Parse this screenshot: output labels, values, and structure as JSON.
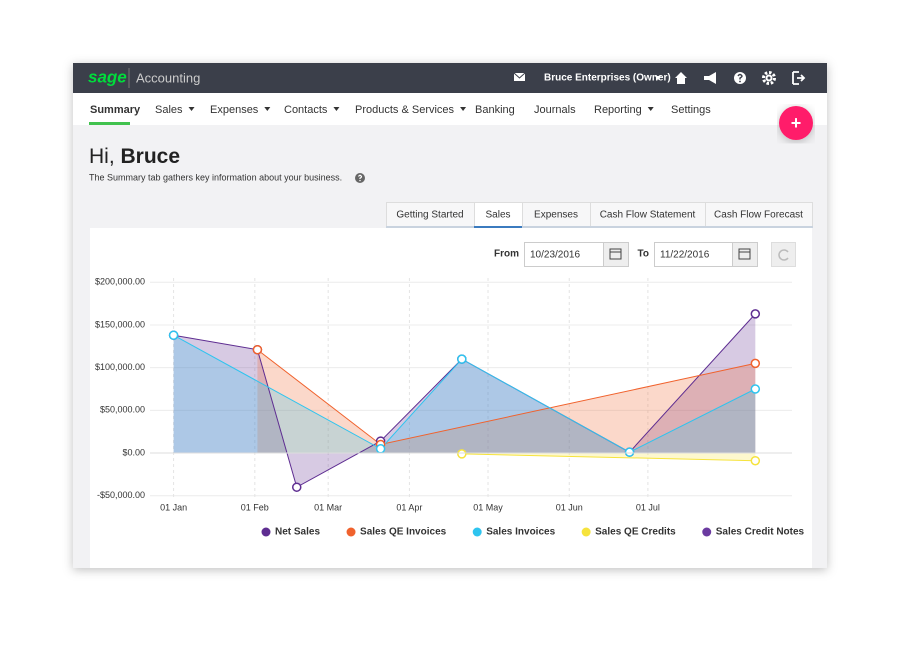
{
  "header": {
    "logo": "sage",
    "product": "Accounting",
    "company": "Bruce Enterprises (Owner)"
  },
  "nav": [
    "Summary",
    "Sales",
    "Expenses",
    "Contacts",
    "Products & Services",
    "Banking",
    "Journals",
    "Reporting",
    "Settings"
  ],
  "add_button": "+",
  "greeting": {
    "hi": "Hi,",
    "name": "Bruce",
    "subtitle": "The Summary tab gathers key information about your business."
  },
  "tabs": [
    "Getting Started",
    "Sales",
    "Expenses",
    "Cash Flow Statement",
    "Cash Flow Forecast"
  ],
  "date_filter": {
    "from_label": "From",
    "from": "10/23/2016",
    "to_label": "To",
    "to": "11/22/2016"
  },
  "chart_data": {
    "type": "area",
    "xlim": [
      -9,
      236
    ],
    "xticks": [
      {
        "value": 0,
        "label": "01 Jan"
      },
      {
        "value": 31,
        "label": "01 Feb"
      },
      {
        "value": 59,
        "label": "01 Mar"
      },
      {
        "value": 90,
        "label": "01 Apr"
      },
      {
        "value": 120,
        "label": "01 May"
      },
      {
        "value": 151,
        "label": "01 Jun"
      },
      {
        "value": 181,
        "label": "01 Jul"
      }
    ],
    "ylim": [
      -55000,
      205000
    ],
    "yticks": [
      {
        "value": -50000,
        "label": "-$50,000.00"
      },
      {
        "value": 0,
        "label": "$0.00"
      },
      {
        "value": 50000,
        "label": "$50,000.00"
      },
      {
        "value": 100000,
        "label": "$100,000.00"
      },
      {
        "value": 150000,
        "label": "$150,000.00"
      },
      {
        "value": 200000,
        "label": "$200,000.00"
      }
    ],
    "grid": true,
    "legend": "bottom",
    "series": [
      {
        "name": "Net Sales",
        "color": "#5e2d91",
        "x": [
          0,
          32,
          47,
          79,
          110,
          174,
          222
        ],
        "values": [
          138000,
          121000,
          -40000,
          14000,
          110000,
          1000,
          163000
        ]
      },
      {
        "name": "Sales QE Invoices",
        "color": "#f0622d",
        "x": [
          32,
          79,
          222
        ],
        "values": [
          121000,
          10000,
          105000
        ]
      },
      {
        "name": "Sales Invoices",
        "color": "#2ec4ef",
        "x": [
          0,
          79,
          110,
          174,
          222
        ],
        "values": [
          138000,
          5000,
          110000,
          1000,
          75000
        ]
      },
      {
        "name": "Sales QE Credits",
        "color": "#f6e33c",
        "x": [
          110,
          222
        ],
        "values": [
          -1000,
          -9000
        ]
      },
      {
        "name": "Sales Credit Notes",
        "color": "#6b3aa0",
        "x": [],
        "values": []
      }
    ]
  }
}
